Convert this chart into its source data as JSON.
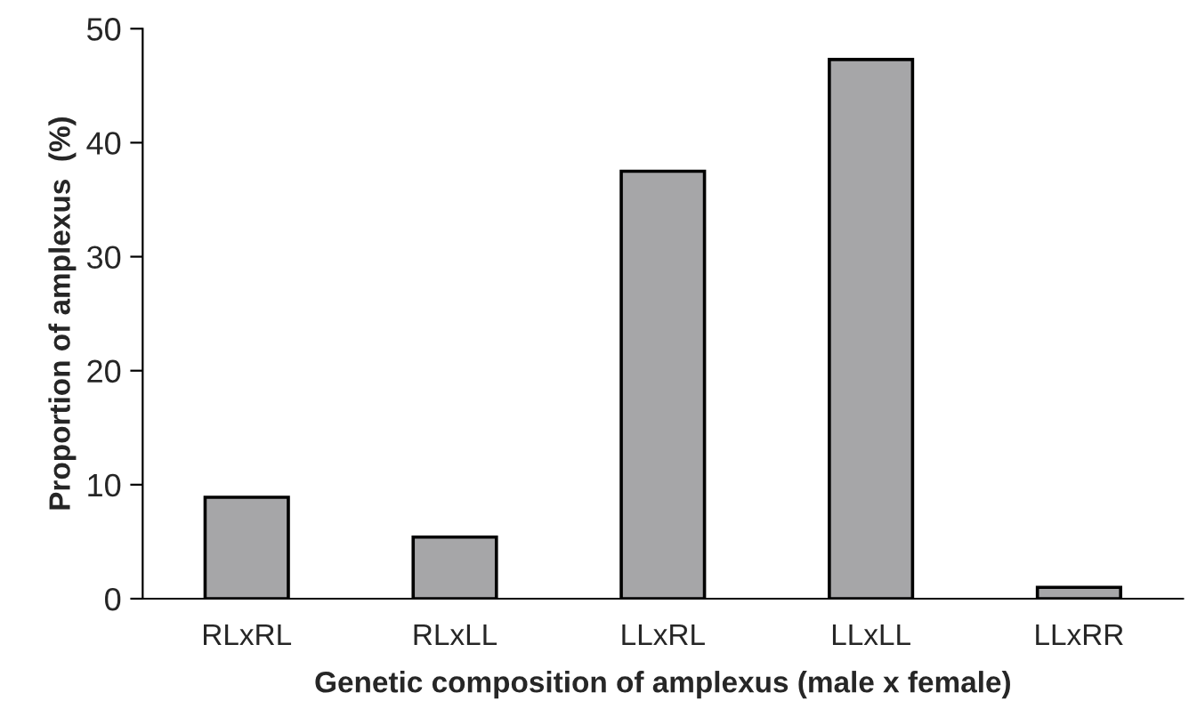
{
  "chart_data": {
    "type": "bar",
    "xlabel": "Genetic composition of amplexus (male x female)",
    "ylabel": "Proportion of amplexus  (%)",
    "categories": [
      "RLxRL",
      "RLxLL",
      "LLxRL",
      "LLxLL",
      "LLxRR"
    ],
    "values": [
      8.9,
      5.4,
      37.5,
      47.3,
      1.0
    ],
    "color": "#a6a6a8",
    "ylim": [
      0,
      50
    ],
    "yticks": [
      0,
      10,
      20,
      30,
      40,
      50
    ],
    "grid": false,
    "legend": false
  }
}
